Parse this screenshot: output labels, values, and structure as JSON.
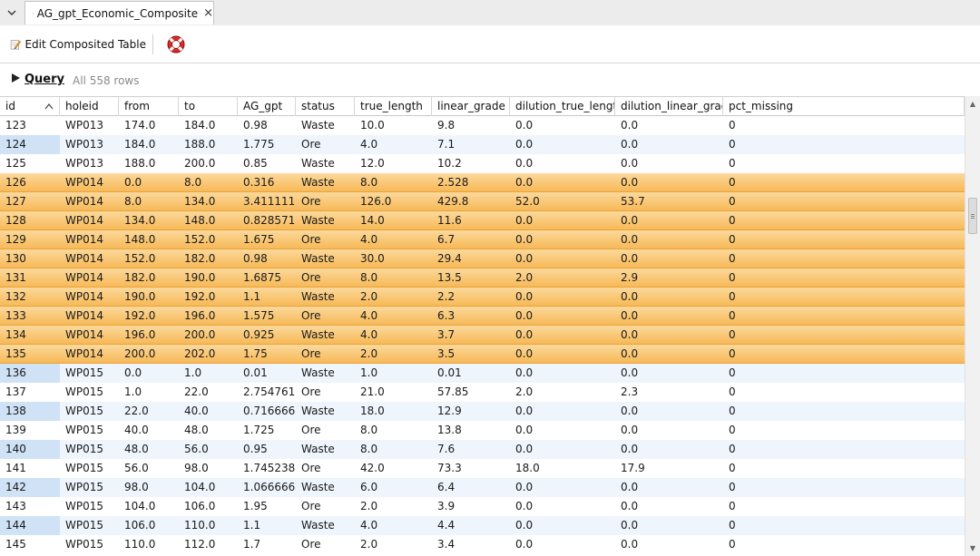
{
  "tab": {
    "label": "AG_gpt_Economic_Composite",
    "close": "×"
  },
  "toolbar": {
    "edit_label": "Edit Composited Table"
  },
  "query": {
    "label": "Query",
    "rows_text": "All 558 rows"
  },
  "colors": {
    "selected_row": "#f7b957",
    "alt_row": "#eef5fc",
    "alt_id": "#cfe2f6"
  },
  "table": {
    "columns": [
      "id",
      "holeid",
      "from",
      "to",
      "AG_gpt",
      "status",
      "true_length",
      "linear_grade",
      "dilution_true_length",
      "dilution_linear_grade",
      "pct_missing"
    ],
    "sort_column": "id",
    "rows": [
      {
        "id": "123",
        "holeid": "WP013",
        "from": "174.0",
        "to": "184.0",
        "AG_gpt": "0.98",
        "status": "Waste",
        "true_length": "10.0",
        "linear_grade": "9.8",
        "dilution_true_length": "0.0",
        "dilution_linear_grade": "0.0",
        "pct_missing": "0",
        "state": "normal"
      },
      {
        "id": "124",
        "holeid": "WP013",
        "from": "184.0",
        "to": "188.0",
        "AG_gpt": "1.775",
        "status": "Ore",
        "true_length": "4.0",
        "linear_grade": "7.1",
        "dilution_true_length": "0.0",
        "dilution_linear_grade": "0.0",
        "pct_missing": "0",
        "state": "alt"
      },
      {
        "id": "125",
        "holeid": "WP013",
        "from": "188.0",
        "to": "200.0",
        "AG_gpt": "0.85",
        "status": "Waste",
        "true_length": "12.0",
        "linear_grade": "10.2",
        "dilution_true_length": "0.0",
        "dilution_linear_grade": "0.0",
        "pct_missing": "0",
        "state": "normal"
      },
      {
        "id": "126",
        "holeid": "WP014",
        "from": "0.0",
        "to": "8.0",
        "AG_gpt": "0.316",
        "status": "Waste",
        "true_length": "8.0",
        "linear_grade": "2.528",
        "dilution_true_length": "0.0",
        "dilution_linear_grade": "0.0",
        "pct_missing": "0",
        "state": "sel"
      },
      {
        "id": "127",
        "holeid": "WP014",
        "from": "8.0",
        "to": "134.0",
        "AG_gpt": "3.411111...",
        "status": "Ore",
        "true_length": "126.0",
        "linear_grade": "429.8",
        "dilution_true_length": "52.0",
        "dilution_linear_grade": "53.7",
        "pct_missing": "0",
        "state": "sel"
      },
      {
        "id": "128",
        "holeid": "WP014",
        "from": "134.0",
        "to": "148.0",
        "AG_gpt": "0.828571...",
        "status": "Waste",
        "true_length": "14.0",
        "linear_grade": "11.6",
        "dilution_true_length": "0.0",
        "dilution_linear_grade": "0.0",
        "pct_missing": "0",
        "state": "sel"
      },
      {
        "id": "129",
        "holeid": "WP014",
        "from": "148.0",
        "to": "152.0",
        "AG_gpt": "1.675",
        "status": "Ore",
        "true_length": "4.0",
        "linear_grade": "6.7",
        "dilution_true_length": "0.0",
        "dilution_linear_grade": "0.0",
        "pct_missing": "0",
        "state": "sel"
      },
      {
        "id": "130",
        "holeid": "WP014",
        "from": "152.0",
        "to": "182.0",
        "AG_gpt": "0.98",
        "status": "Waste",
        "true_length": "30.0",
        "linear_grade": "29.4",
        "dilution_true_length": "0.0",
        "dilution_linear_grade": "0.0",
        "pct_missing": "0",
        "state": "sel"
      },
      {
        "id": "131",
        "holeid": "WP014",
        "from": "182.0",
        "to": "190.0",
        "AG_gpt": "1.6875",
        "status": "Ore",
        "true_length": "8.0",
        "linear_grade": "13.5",
        "dilution_true_length": "2.0",
        "dilution_linear_grade": "2.9",
        "pct_missing": "0",
        "state": "sel"
      },
      {
        "id": "132",
        "holeid": "WP014",
        "from": "190.0",
        "to": "192.0",
        "AG_gpt": "1.1",
        "status": "Waste",
        "true_length": "2.0",
        "linear_grade": "2.2",
        "dilution_true_length": "0.0",
        "dilution_linear_grade": "0.0",
        "pct_missing": "0",
        "state": "sel"
      },
      {
        "id": "133",
        "holeid": "WP014",
        "from": "192.0",
        "to": "196.0",
        "AG_gpt": "1.575",
        "status": "Ore",
        "true_length": "4.0",
        "linear_grade": "6.3",
        "dilution_true_length": "0.0",
        "dilution_linear_grade": "0.0",
        "pct_missing": "0",
        "state": "sel"
      },
      {
        "id": "134",
        "holeid": "WP014",
        "from": "196.0",
        "to": "200.0",
        "AG_gpt": "0.925",
        "status": "Waste",
        "true_length": "4.0",
        "linear_grade": "3.7",
        "dilution_true_length": "0.0",
        "dilution_linear_grade": "0.0",
        "pct_missing": "0",
        "state": "sel"
      },
      {
        "id": "135",
        "holeid": "WP014",
        "from": "200.0",
        "to": "202.0",
        "AG_gpt": "1.75",
        "status": "Ore",
        "true_length": "2.0",
        "linear_grade": "3.5",
        "dilution_true_length": "0.0",
        "dilution_linear_grade": "0.0",
        "pct_missing": "0",
        "state": "sel"
      },
      {
        "id": "136",
        "holeid": "WP015",
        "from": "0.0",
        "to": "1.0",
        "AG_gpt": "0.01",
        "status": "Waste",
        "true_length": "1.0",
        "linear_grade": "0.01",
        "dilution_true_length": "0.0",
        "dilution_linear_grade": "0.0",
        "pct_missing": "0",
        "state": "alt"
      },
      {
        "id": "137",
        "holeid": "WP015",
        "from": "1.0",
        "to": "22.0",
        "AG_gpt": "2.754761...",
        "status": "Ore",
        "true_length": "21.0",
        "linear_grade": "57.85",
        "dilution_true_length": "2.0",
        "dilution_linear_grade": "2.3",
        "pct_missing": "0",
        "state": "normal"
      },
      {
        "id": "138",
        "holeid": "WP015",
        "from": "22.0",
        "to": "40.0",
        "AG_gpt": "0.716666...",
        "status": "Waste",
        "true_length": "18.0",
        "linear_grade": "12.9",
        "dilution_true_length": "0.0",
        "dilution_linear_grade": "0.0",
        "pct_missing": "0",
        "state": "alt"
      },
      {
        "id": "139",
        "holeid": "WP015",
        "from": "40.0",
        "to": "48.0",
        "AG_gpt": "1.725",
        "status": "Ore",
        "true_length": "8.0",
        "linear_grade": "13.8",
        "dilution_true_length": "0.0",
        "dilution_linear_grade": "0.0",
        "pct_missing": "0",
        "state": "normal"
      },
      {
        "id": "140",
        "holeid": "WP015",
        "from": "48.0",
        "to": "56.0",
        "AG_gpt": "0.95",
        "status": "Waste",
        "true_length": "8.0",
        "linear_grade": "7.6",
        "dilution_true_length": "0.0",
        "dilution_linear_grade": "0.0",
        "pct_missing": "0",
        "state": "alt"
      },
      {
        "id": "141",
        "holeid": "WP015",
        "from": "56.0",
        "to": "98.0",
        "AG_gpt": "1.745238...",
        "status": "Ore",
        "true_length": "42.0",
        "linear_grade": "73.3",
        "dilution_true_length": "18.0",
        "dilution_linear_grade": "17.9",
        "pct_missing": "0",
        "state": "normal"
      },
      {
        "id": "142",
        "holeid": "WP015",
        "from": "98.0",
        "to": "104.0",
        "AG_gpt": "1.066666...",
        "status": "Waste",
        "true_length": "6.0",
        "linear_grade": "6.4",
        "dilution_true_length": "0.0",
        "dilution_linear_grade": "0.0",
        "pct_missing": "0",
        "state": "alt"
      },
      {
        "id": "143",
        "holeid": "WP015",
        "from": "104.0",
        "to": "106.0",
        "AG_gpt": "1.95",
        "status": "Ore",
        "true_length": "2.0",
        "linear_grade": "3.9",
        "dilution_true_length": "0.0",
        "dilution_linear_grade": "0.0",
        "pct_missing": "0",
        "state": "normal"
      },
      {
        "id": "144",
        "holeid": "WP015",
        "from": "106.0",
        "to": "110.0",
        "AG_gpt": "1.1",
        "status": "Waste",
        "true_length": "4.0",
        "linear_grade": "4.4",
        "dilution_true_length": "0.0",
        "dilution_linear_grade": "0.0",
        "pct_missing": "0",
        "state": "alt"
      },
      {
        "id": "145",
        "holeid": "WP015",
        "from": "110.0",
        "to": "112.0",
        "AG_gpt": "1.7",
        "status": "Ore",
        "true_length": "2.0",
        "linear_grade": "3.4",
        "dilution_true_length": "0.0",
        "dilution_linear_grade": "0.0",
        "pct_missing": "0",
        "state": "normal"
      }
    ]
  }
}
